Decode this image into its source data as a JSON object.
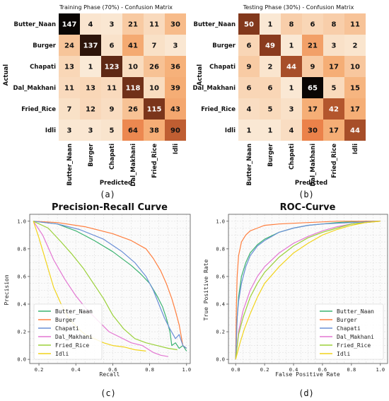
{
  "captions": [
    "(a)",
    "(b)",
    "(c)",
    "(d)"
  ],
  "colors": {
    "Butter_Naan": "#3cb371",
    "Burger": "#ff7f3f",
    "Chapati": "#6a8fd6",
    "Dal_Makhani": "#e376d2",
    "Fried_Rice": "#9bd13a",
    "Idli": "#f2d41c"
  },
  "chart_data": [
    {
      "type": "heatmap",
      "title": "Training Phase (70%) - Confusion Matrix",
      "xlabel": "Predicted",
      "ylabel": "Actual",
      "categories": [
        "Butter_Naan",
        "Burger",
        "Chapati",
        "Dal_Makhani",
        "Fried_Rice",
        "Idli"
      ],
      "values": [
        [
          147,
          4,
          3,
          21,
          11,
          30
        ],
        [
          24,
          137,
          6,
          41,
          7,
          3
        ],
        [
          13,
          1,
          123,
          10,
          26,
          36
        ],
        [
          11,
          13,
          11,
          118,
          10,
          39
        ],
        [
          7,
          12,
          9,
          26,
          115,
          43
        ],
        [
          3,
          3,
          5,
          64,
          38,
          90
        ]
      ]
    },
    {
      "type": "heatmap",
      "title": "Testing Phase (30%) - Confusion Matrix",
      "xlabel": "Predicted",
      "ylabel": "Actual",
      "categories": [
        "Butter_Naan",
        "Burger",
        "Chapati",
        "Dal_Makhani",
        "Fried_Rice",
        "Idli"
      ],
      "values": [
        [
          50,
          1,
          8,
          6,
          8,
          11
        ],
        [
          6,
          49,
          1,
          21,
          3,
          2
        ],
        [
          9,
          2,
          44,
          9,
          17,
          10
        ],
        [
          6,
          6,
          1,
          65,
          5,
          15
        ],
        [
          4,
          5,
          3,
          17,
          42,
          17
        ],
        [
          1,
          1,
          4,
          30,
          17,
          44
        ]
      ]
    },
    {
      "type": "line",
      "title": "Precision-Recall Curve",
      "xlabel": "Recall",
      "ylabel": "Precision",
      "xlim": [
        0.15,
        1.02
      ],
      "ylim": [
        -0.03,
        1.05
      ],
      "xticks": [
        "0.2",
        "0.4",
        "0.6",
        "0.8",
        "1.0"
      ],
      "yticks": [
        "0.0",
        "0.2",
        "0.4",
        "0.6",
        "0.8",
        "1.0"
      ],
      "grid": true,
      "legend": "lower-left",
      "series": [
        {
          "name": "Butter_Naan",
          "x": [
            0.17,
            0.3,
            0.4,
            0.5,
            0.6,
            0.7,
            0.75,
            0.8,
            0.84,
            0.87,
            0.89,
            0.91,
            0.92,
            0.94,
            0.96,
            0.98,
            1.0
          ],
          "y": [
            1.0,
            0.98,
            0.93,
            0.86,
            0.78,
            0.68,
            0.62,
            0.55,
            0.46,
            0.38,
            0.3,
            0.2,
            0.1,
            0.12,
            0.08,
            0.1,
            0.06
          ]
        },
        {
          "name": "Burger",
          "x": [
            0.17,
            0.3,
            0.45,
            0.6,
            0.7,
            0.78,
            0.82,
            0.86,
            0.89,
            0.92,
            0.94,
            0.96,
            0.98,
            1.0
          ],
          "y": [
            1.0,
            0.99,
            0.96,
            0.91,
            0.86,
            0.8,
            0.73,
            0.64,
            0.55,
            0.44,
            0.35,
            0.25,
            0.1,
            0.08
          ]
        },
        {
          "name": "Chapati",
          "x": [
            0.17,
            0.3,
            0.42,
            0.55,
            0.65,
            0.72,
            0.78,
            0.82,
            0.85,
            0.88,
            0.91,
            0.94,
            0.96,
            0.98,
            1.0
          ],
          "y": [
            1.0,
            0.98,
            0.94,
            0.87,
            0.78,
            0.7,
            0.6,
            0.5,
            0.4,
            0.3,
            0.22,
            0.15,
            0.18,
            0.1,
            0.08
          ]
        },
        {
          "name": "Dal_Makhani",
          "x": [
            0.17,
            0.22,
            0.28,
            0.34,
            0.4,
            0.46,
            0.52,
            0.58,
            0.64,
            0.7,
            0.76,
            0.82,
            0.86,
            0.9
          ],
          "y": [
            1.0,
            0.9,
            0.72,
            0.58,
            0.46,
            0.36,
            0.28,
            0.2,
            0.16,
            0.12,
            0.1,
            0.05,
            0.03,
            0.02
          ]
        },
        {
          "name": "Fried_Rice",
          "x": [
            0.17,
            0.25,
            0.32,
            0.38,
            0.44,
            0.5,
            0.55,
            0.6,
            0.66,
            0.72,
            0.78,
            0.84,
            0.9,
            0.95
          ],
          "y": [
            1.0,
            0.95,
            0.85,
            0.76,
            0.66,
            0.54,
            0.44,
            0.32,
            0.22,
            0.15,
            0.12,
            0.1,
            0.08,
            0.07
          ]
        },
        {
          "name": "Idli",
          "x": [
            0.17,
            0.2,
            0.24,
            0.28,
            0.32,
            0.36,
            0.4,
            0.45,
            0.5,
            0.55,
            0.6,
            0.66,
            0.72,
            0.78
          ],
          "y": [
            1.0,
            0.88,
            0.7,
            0.52,
            0.4,
            0.3,
            0.24,
            0.18,
            0.15,
            0.12,
            0.1,
            0.09,
            0.07,
            0.06
          ]
        }
      ]
    },
    {
      "type": "line",
      "title": "ROC-Curve",
      "xlabel": "False Positive Rate",
      "ylabel": "True Positive Rate",
      "xlim": [
        -0.05,
        1.05
      ],
      "ylim": [
        -0.03,
        1.05
      ],
      "xticks": [
        "0.0",
        "0.2",
        "0.4",
        "0.6",
        "0.8",
        "1.0"
      ],
      "yticks": [
        "0.0",
        "0.2",
        "0.4",
        "0.6",
        "0.8",
        "1.0"
      ],
      "grid": true,
      "legend": "lower-right",
      "series": [
        {
          "name": "Butter_Naan",
          "x": [
            0,
            0.01,
            0.02,
            0.04,
            0.07,
            0.1,
            0.15,
            0.2,
            0.3,
            0.4,
            0.5,
            0.6,
            0.7,
            0.8,
            0.9,
            1.0
          ],
          "y": [
            0,
            0.3,
            0.45,
            0.6,
            0.7,
            0.77,
            0.83,
            0.87,
            0.92,
            0.95,
            0.97,
            0.98,
            0.99,
            0.995,
            1.0,
            1.0
          ]
        },
        {
          "name": "Burger",
          "x": [
            0,
            0.005,
            0.01,
            0.02,
            0.04,
            0.07,
            0.1,
            0.15,
            0.2,
            0.3,
            0.5,
            0.7,
            1.0
          ],
          "y": [
            0,
            0.4,
            0.6,
            0.75,
            0.85,
            0.9,
            0.93,
            0.95,
            0.97,
            0.98,
            0.99,
            1.0,
            1.0
          ]
        },
        {
          "name": "Chapati",
          "x": [
            0,
            0.01,
            0.02,
            0.04,
            0.07,
            0.1,
            0.15,
            0.2,
            0.3,
            0.4,
            0.5,
            0.6,
            0.8,
            1.0
          ],
          "y": [
            0,
            0.3,
            0.42,
            0.55,
            0.67,
            0.75,
            0.82,
            0.86,
            0.92,
            0.95,
            0.97,
            0.98,
            0.99,
            1.0
          ]
        },
        {
          "name": "Dal_Makhani",
          "x": [
            0,
            0.02,
            0.05,
            0.1,
            0.15,
            0.2,
            0.3,
            0.4,
            0.5,
            0.6,
            0.7,
            0.8,
            0.9,
            1.0
          ],
          "y": [
            0,
            0.2,
            0.35,
            0.5,
            0.6,
            0.67,
            0.77,
            0.84,
            0.89,
            0.93,
            0.96,
            0.98,
            0.99,
            1.0
          ]
        },
        {
          "name": "Fried_Rice",
          "x": [
            0,
            0.02,
            0.05,
            0.1,
            0.15,
            0.2,
            0.3,
            0.4,
            0.5,
            0.6,
            0.7,
            0.8,
            0.9,
            1.0
          ],
          "y": [
            0,
            0.18,
            0.3,
            0.45,
            0.55,
            0.63,
            0.74,
            0.82,
            0.88,
            0.92,
            0.95,
            0.98,
            0.99,
            1.0
          ]
        },
        {
          "name": "Idli",
          "x": [
            0,
            0.03,
            0.06,
            0.1,
            0.15,
            0.2,
            0.3,
            0.4,
            0.5,
            0.6,
            0.7,
            0.8,
            0.9,
            1.0
          ],
          "y": [
            0,
            0.12,
            0.22,
            0.33,
            0.45,
            0.55,
            0.67,
            0.77,
            0.84,
            0.9,
            0.94,
            0.97,
            0.99,
            1.0
          ]
        }
      ]
    }
  ]
}
